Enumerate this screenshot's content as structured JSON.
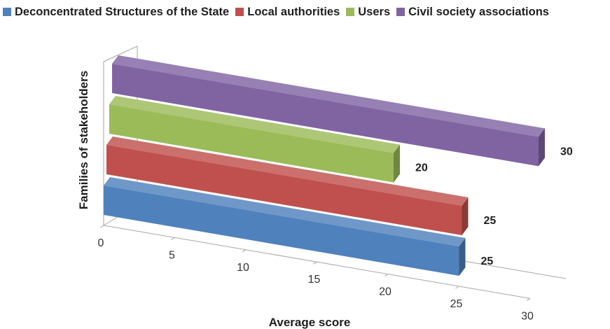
{
  "chart_data": {
    "type": "bar",
    "orientation": "horizontal",
    "style": "3d",
    "xlabel": "Average score",
    "ylabel": "Families of stakeholders",
    "xlim": [
      0,
      30
    ],
    "xticks": [
      0,
      5,
      10,
      15,
      20,
      25,
      30
    ],
    "grid": false,
    "legend_position": "top",
    "series": [
      {
        "name": "Deconcentrated Structures of the State",
        "value": 25,
        "color": "#4f81bd",
        "label": "25"
      },
      {
        "name": "Local authorities",
        "value": 25,
        "color": "#c0504d",
        "label": "25"
      },
      {
        "name": "Users",
        "value": 20,
        "color": "#9bbb59",
        "label": "20"
      },
      {
        "name": "Civil society associations",
        "value": 30,
        "color": "#8064a2",
        "label": "30"
      }
    ]
  }
}
